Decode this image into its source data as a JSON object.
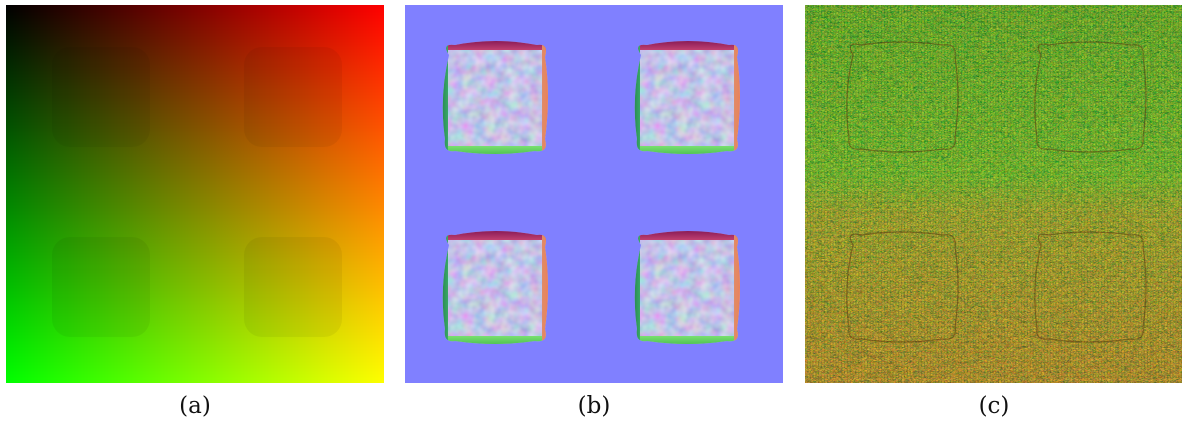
{
  "figure": {
    "panels": [
      {
        "id": "a",
        "caption": "(a)",
        "description_colors": {
          "top_left": "#000000",
          "top_right": "#ff0000",
          "bottom_left": "#00ff00",
          "bottom_right": "#ffff00"
        }
      },
      {
        "id": "b",
        "caption": "(b)",
        "description_colors": {
          "background": "#8080ff",
          "edge_top": "#b0306a",
          "edge_left": "#2e8f5a",
          "edge_bottom": "#62d860",
          "edge_right": "#f08060"
        }
      },
      {
        "id": "c",
        "caption": "(c)",
        "description_colors": {
          "primary": "#4a9a18",
          "secondary": "#e0701a",
          "accent": "#d8c020"
        }
      }
    ]
  }
}
